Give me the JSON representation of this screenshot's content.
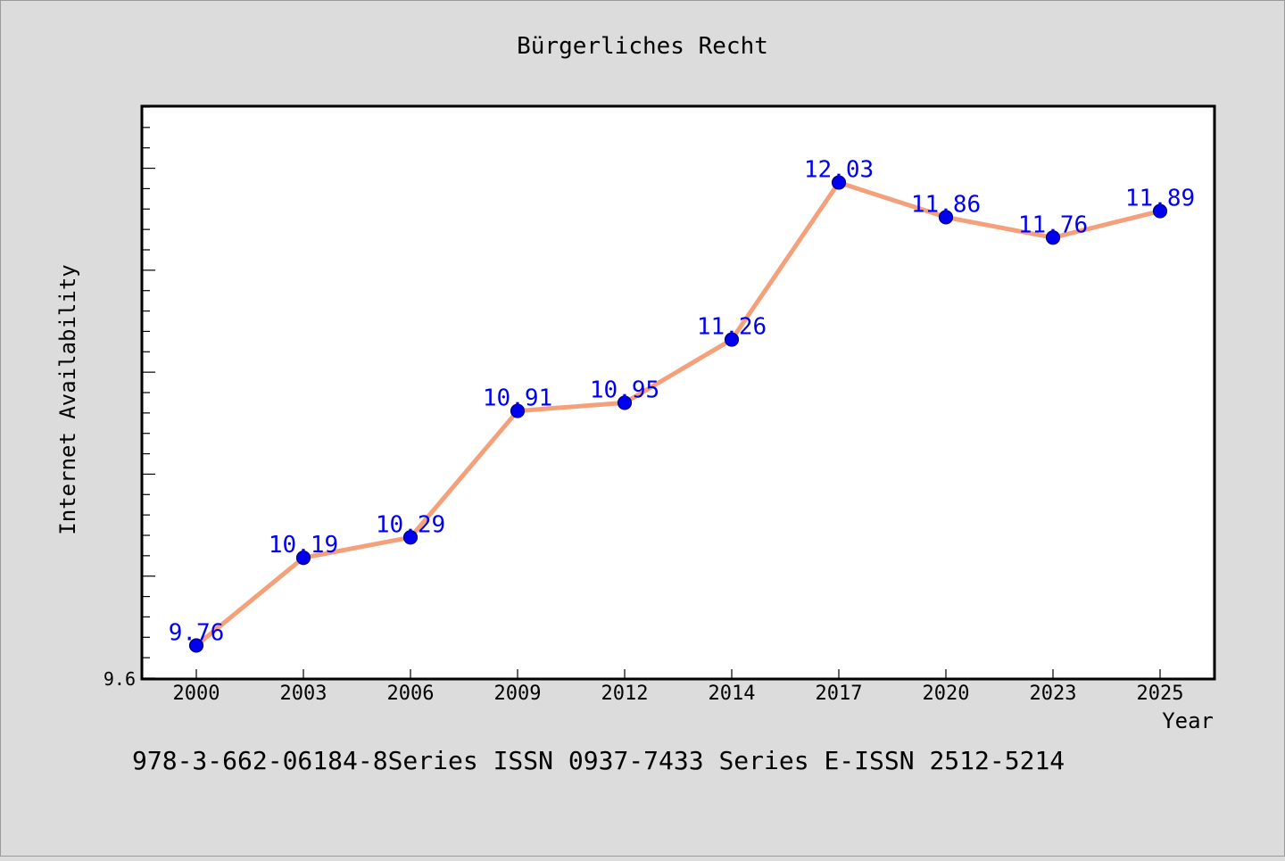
{
  "chart_data": {
    "type": "line",
    "title": "Bürgerliches Recht",
    "xlabel": "Year",
    "ylabel": "Internet Availability",
    "categories": [
      "2000",
      "2003",
      "2006",
      "2009",
      "2012",
      "2014",
      "2017",
      "2020",
      "2023",
      "2025"
    ],
    "values": [
      9.76,
      10.19,
      10.29,
      10.91,
      10.95,
      11.26,
      12.03,
      11.86,
      11.76,
      11.89
    ],
    "data_labels": [
      "9.76",
      "10.19",
      "10.29",
      "10.91",
      "10.95",
      "11.26",
      "12.03",
      "11.86",
      "11.76",
      "11.89"
    ],
    "y_tick_label": "9.6",
    "ylim": [
      9.6,
      12.4
    ],
    "grid": false,
    "legend": "none",
    "line_color": "#f4a07a",
    "marker_color": "#0000ee",
    "label_color": "#0000ee"
  },
  "footer_text": "978-3-662-06184-8Series ISSN 0937-7433 Series E-ISSN 2512-5214",
  "colors": {
    "background": "#dcdcdc",
    "plot_background": "#ffffff",
    "axis": "#000000",
    "text": "#000000"
  }
}
